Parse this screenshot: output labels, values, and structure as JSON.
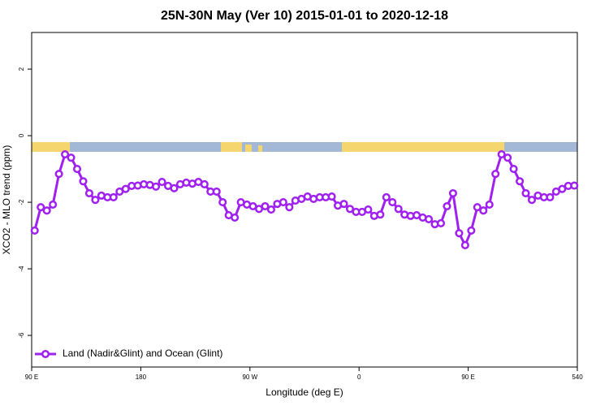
{
  "chart_data": {
    "type": "line",
    "title": "25N-30N May (Ver 10)   2015-01-01 to 2020-12-18",
    "xlabel": "Longitude (deg E)",
    "ylabel": "XCO2 - MLO trend (ppm)",
    "xlim": [
      90,
      540
    ],
    "ylim": [
      -6.95,
      3.1
    ],
    "xticks": [
      {
        "value": 90,
        "label": "90 E"
      },
      180,
      {
        "value": 270,
        "label": "90 W"
      },
      {
        "value": 360,
        "label": "0"
      },
      {
        "value": 450,
        "label": "90 E"
      },
      540
    ],
    "yticks": [
      2,
      0,
      -2,
      -4,
      -6
    ],
    "legend": "bottom-left",
    "x": [
      92.5,
      97.5,
      102.5,
      107.5,
      112.5,
      117.5,
      122.5,
      127.5,
      132.5,
      137.5,
      142.5,
      147.5,
      152.5,
      157.5,
      162.5,
      167.5,
      172.5,
      177.5,
      182.5,
      187.5,
      192.5,
      197.5,
      202.5,
      207.5,
      212.5,
      217.5,
      222.5,
      227.5,
      232.5,
      237.5,
      242.5,
      247.5,
      252.5,
      257.5,
      262.5,
      267.5,
      272.5,
      277.5,
      282.5,
      287.5,
      292.5,
      297.5,
      302.5,
      307.5,
      312.5,
      317.5,
      322.5,
      327.5,
      332.5,
      337.5,
      342.5,
      347.5,
      352.5,
      357.5,
      362.5,
      367.5,
      372.5,
      377.5,
      382.5,
      387.5,
      392.5,
      397.5,
      402.5,
      407.5,
      412.5,
      417.5,
      422.5,
      427.5,
      432.5,
      437.5,
      442.5,
      447.5,
      452.5,
      457.5,
      462.5,
      467.5,
      472.5,
      477.5,
      482.5,
      487.5,
      492.5,
      497.5,
      502.5,
      507.5,
      512.5,
      517.5,
      522.5,
      527.5,
      532.5,
      537.5
    ],
    "series": [
      {
        "name": "Land (Nadir&Glint) and Ocean (Glint)",
        "color": "#a020f0",
        "values": [
          -2.85,
          -2.15,
          -2.25,
          -2.07,
          -1.15,
          -0.56,
          -0.66,
          -1.0,
          -1.37,
          -1.73,
          -1.93,
          -1.8,
          -1.85,
          -1.85,
          -1.68,
          -1.6,
          -1.51,
          -1.5,
          -1.46,
          -1.48,
          -1.53,
          -1.39,
          -1.51,
          -1.58,
          -1.46,
          -1.41,
          -1.44,
          -1.39,
          -1.46,
          -1.68,
          -1.68,
          -2.0,
          -2.39,
          -2.46,
          -2.0,
          -2.07,
          -2.12,
          -2.2,
          -2.12,
          -2.22,
          -2.05,
          -2.0,
          -2.15,
          -1.95,
          -1.9,
          -1.83,
          -1.9,
          -1.85,
          -1.85,
          -1.83,
          -2.1,
          -2.05,
          -2.2,
          -2.29,
          -2.29,
          -2.22,
          -2.41,
          -2.37,
          -1.85,
          -2.0,
          -2.2,
          -2.37,
          -2.41,
          -2.39,
          -2.46,
          -2.51,
          -2.66,
          -2.63,
          -2.12,
          -1.73,
          -2.93,
          -3.29,
          -2.85,
          -2.15,
          -2.25,
          -2.07,
          -1.15,
          -0.56,
          -0.66,
          -1.0,
          -1.37,
          -1.73,
          -1.93,
          -1.8,
          -1.85,
          -1.85,
          -1.68,
          -1.6,
          -1.51,
          -1.5
        ]
      }
    ]
  }
}
